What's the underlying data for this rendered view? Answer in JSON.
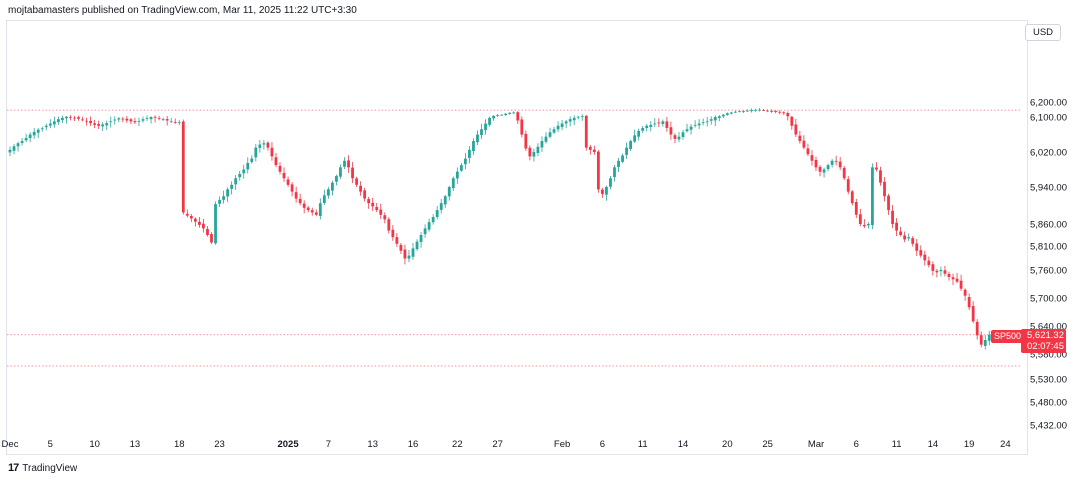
{
  "header": {
    "published_by": "mojtabamasters published on TradingView.com, Mar 11, 2025 11:22 UTC+3:30"
  },
  "currency": "USD",
  "price_tag": {
    "symbol": "SP500",
    "price": "5,621.32",
    "countdown": "02:07:45"
  },
  "footer": {
    "logo_mark": "17",
    "brand": "TradingView"
  },
  "colors": {
    "up": "#26a69a",
    "down": "#f23645",
    "grid": "#e0e3eb",
    "line_dotted": "#f23645"
  },
  "chart_data": {
    "type": "candlestick",
    "symbol": "SP500",
    "currency": "USD",
    "y_ticks": [
      {
        "label": "6,200.00",
        "value": 6200
      },
      {
        "label": "6,100.00",
        "value": 6100
      },
      {
        "label": "6,020.00",
        "value": 6020
      },
      {
        "label": "5,940.00",
        "value": 5940
      },
      {
        "label": "5,860.00",
        "value": 5860
      },
      {
        "label": "5,810.00",
        "value": 5810
      },
      {
        "label": "5,760.00",
        "value": 5760
      },
      {
        "label": "5,700.00",
        "value": 5700
      },
      {
        "label": "5,640.00",
        "value": 5640
      },
      {
        "label": "5,580.00",
        "value": 5580
      },
      {
        "label": "5,530.00",
        "value": 5530
      },
      {
        "label": "5,480.00",
        "value": 5480
      },
      {
        "label": "5,432.00",
        "value": 5432
      }
    ],
    "x_ticks": [
      {
        "label": "Dec",
        "idx": 0,
        "bold": false
      },
      {
        "label": "5",
        "idx": 10,
        "bold": false
      },
      {
        "label": "10",
        "idx": 21,
        "bold": false
      },
      {
        "label": "13",
        "idx": 31,
        "bold": false
      },
      {
        "label": "18",
        "idx": 42,
        "bold": false
      },
      {
        "label": "23",
        "idx": 52,
        "bold": false
      },
      {
        "label": "2025",
        "idx": 69,
        "bold": true
      },
      {
        "label": "7",
        "idx": 79,
        "bold": false
      },
      {
        "label": "13",
        "idx": 90,
        "bold": false
      },
      {
        "label": "16",
        "idx": 100,
        "bold": false
      },
      {
        "label": "22",
        "idx": 111,
        "bold": false
      },
      {
        "label": "27",
        "idx": 121,
        "bold": false
      },
      {
        "label": "Feb",
        "idx": 137,
        "bold": false
      },
      {
        "label": "6",
        "idx": 147,
        "bold": false
      },
      {
        "label": "11",
        "idx": 157,
        "bold": false
      },
      {
        "label": "14",
        "idx": 167,
        "bold": false
      },
      {
        "label": "20",
        "idx": 178,
        "bold": false
      },
      {
        "label": "25",
        "idx": 188,
        "bold": false
      },
      {
        "label": "Mar",
        "idx": 200,
        "bold": false
      },
      {
        "label": "6",
        "idx": 210,
        "bold": false
      },
      {
        "label": "11",
        "idx": 220,
        "bold": false
      },
      {
        "label": "14",
        "idx": 229,
        "bold": false
      },
      {
        "label": "19",
        "idx": 238,
        "bold": false
      },
      {
        "label": "24",
        "idx": 247,
        "bold": false
      }
    ],
    "resistance_line": 6146,
    "support_line": 5556,
    "last_price": 5621.32,
    "closes": [
      6025,
      6033,
      6040,
      6045,
      6052,
      6060,
      6066,
      6071,
      6074,
      6080,
      6085,
      6090,
      6095,
      6098,
      6102,
      6100,
      6098,
      6096,
      6094,
      6090,
      6086,
      6082,
      6080,
      6083,
      6086,
      6090,
      6094,
      6097,
      6095,
      6092,
      6090,
      6088,
      6091,
      6095,
      6098,
      6100,
      6099,
      6097,
      6095,
      6092,
      6090,
      6088,
      6088,
      5885,
      5878,
      5872,
      5865,
      5858,
      5850,
      5835,
      5818,
      5903,
      5912,
      5920,
      5935,
      5945,
      5960,
      5970,
      5980,
      5995,
      6005,
      6030,
      6037,
      6040,
      6030,
      6010,
      5990,
      5975,
      5960,
      5945,
      5930,
      5915,
      5905,
      5895,
      5890,
      5885,
      5880,
      5905,
      5922,
      5935,
      5950,
      5965,
      5985,
      6000,
      5985,
      5960,
      5945,
      5930,
      5915,
      5905,
      5898,
      5890,
      5880,
      5870,
      5845,
      5830,
      5815,
      5800,
      5784,
      5790,
      5805,
      5820,
      5835,
      5850,
      5864,
      5875,
      5890,
      5905,
      5920,
      5940,
      5960,
      5975,
      5990,
      6005,
      6025,
      6045,
      6060,
      6072,
      6085,
      6098,
      6108,
      6112,
      6115,
      6122,
      6128,
      6130,
      6092,
      6060,
      6028,
      6010,
      6020,
      6032,
      6045,
      6055,
      6065,
      6072,
      6080,
      6085,
      6090,
      6095,
      6098,
      6102,
      6105,
      6030,
      6025,
      6020,
      5935,
      5925,
      5940,
      5960,
      5985,
      6000,
      6012,
      6030,
      6045,
      6058,
      6068,
      6075,
      6080,
      6082,
      6085,
      6087,
      6090,
      6075,
      6060,
      6050,
      6055,
      6065,
      6072,
      6078,
      6082,
      6085,
      6088,
      6090,
      6095,
      6100,
      6105,
      6115,
      6125,
      6130,
      6135,
      6138,
      6140,
      6142,
      6145,
      6147,
      6148,
      6144,
      6142,
      6138,
      6134,
      6130,
      6125,
      6105,
      6080,
      6060,
      6045,
      6030,
      6015,
      6000,
      5985,
      5975,
      5980,
      5990,
      6000,
      5998,
      5985,
      5960,
      5930,
      5905,
      5880,
      5860,
      5855,
      5860,
      5985,
      5980,
      5950,
      5920,
      5890,
      5860,
      5845,
      5835,
      5825,
      5830,
      5815,
      5800,
      5790,
      5780,
      5770,
      5758,
      5755,
      5760,
      5752,
      5745,
      5740,
      5735,
      5720,
      5705,
      5680,
      5650,
      5620,
      5600,
      5610,
      5621.32
    ]
  }
}
